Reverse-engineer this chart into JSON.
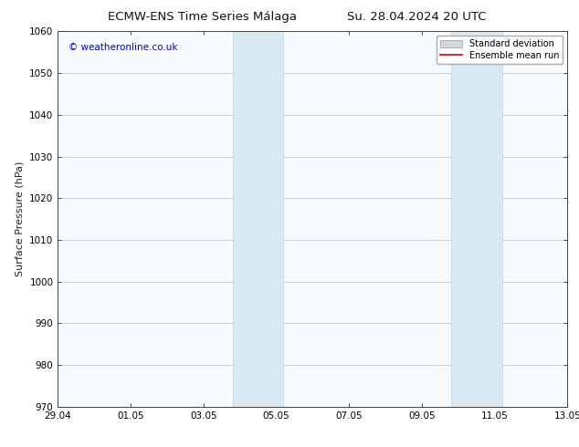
{
  "title_left": "ECMW-ENS Time Series Málaga",
  "title_right": "Su. 28.04.2024 20 UTC",
  "ylabel": "Surface Pressure (hPa)",
  "ylim": [
    970,
    1060
  ],
  "yticks": [
    970,
    980,
    990,
    1000,
    1010,
    1020,
    1030,
    1040,
    1050,
    1060
  ],
  "xtick_labels": [
    "29.04",
    "01.05",
    "03.05",
    "05.05",
    "07.05",
    "09.05",
    "11.05",
    "13.05"
  ],
  "xtick_positions": [
    0,
    2,
    4,
    6,
    8,
    10,
    12,
    14
  ],
  "xmin": 0,
  "xmax": 14,
  "shaded_bands": [
    {
      "xmin": 4.8,
      "xmax": 6.2
    },
    {
      "xmin": 10.8,
      "xmax": 12.2
    }
  ],
  "shade_color": "#daeaf5",
  "shade_edge_color": "#b8d4e8",
  "watermark_text": "© weatheronline.co.uk",
  "watermark_color": "#0000cc",
  "legend_std_color": "#d8d8d8",
  "legend_mean_color": "#dd0000",
  "background_color": "#ffffff",
  "plot_bg_color": "#f8fbfe",
  "grid_color": "#bbbbbb",
  "title_fontsize": 9.5,
  "label_fontsize": 8,
  "tick_fontsize": 7.5,
  "legend_fontsize": 7
}
